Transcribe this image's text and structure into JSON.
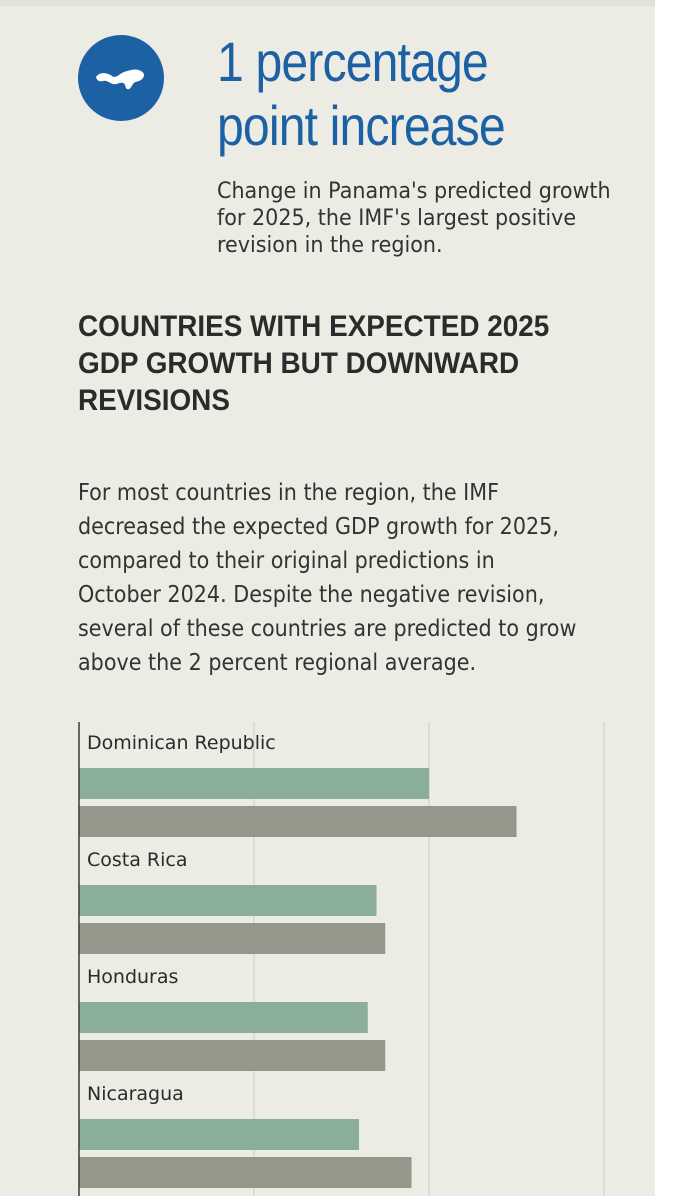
{
  "stat": {
    "headline": "1 percentage point increase",
    "caption": "Change in Panama's predicted growth for 2025, the IMF's largest positive revision in the region."
  },
  "section": {
    "heading": "COUNTRIES WITH EXPECTED 2025 GDP GROWTH BUT DOWNWARD REVISIONS",
    "description": "For most countries in the region, the IMF decreased the expected GDP growth for 2025, compared to their original predictions in October 2024. Despite the negative revision, several of these countries are predicted to grow above the 2 percent regional average."
  },
  "colors": {
    "accent_blue": "#1d61a5",
    "series_green": "#8aae98",
    "series_gray": "#96968a",
    "background": "#ecebe4"
  },
  "icons": {
    "badge": "panama-map-icon"
  },
  "chart_data": {
    "type": "bar",
    "orientation": "horizontal",
    "categories": [
      "Dominican Republic",
      "Costa Rica",
      "Honduras",
      "Nicaragua"
    ],
    "series": [
      {
        "values": [
          4.0,
          3.4,
          3.3,
          3.2
        ]
      },
      {
        "values": [
          5.0,
          3.5,
          3.5,
          3.8
        ]
      }
    ],
    "xlim": [
      0,
      6
    ],
    "gridlines": [
      0,
      2,
      4,
      6
    ],
    "grid": true
  }
}
